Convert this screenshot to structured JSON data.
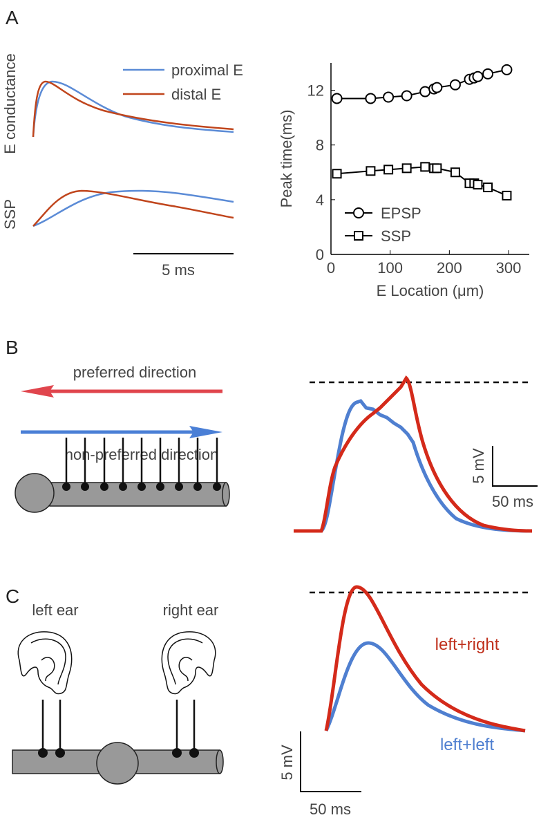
{
  "chart_data": {
    "type": "line",
    "xlabel": "E Location (μm)",
    "ylabel": "Peak time(ms)",
    "x": [
      10,
      67,
      97,
      128,
      159,
      174,
      179,
      210,
      234,
      242,
      248,
      265,
      297
    ],
    "series": [
      {
        "name": "EPSP",
        "color": "#000000",
        "marker": "circle",
        "values": [
          11.4,
          11.4,
          11.5,
          11.6,
          11.9,
          12.1,
          12.2,
          12.4,
          12.8,
          12.9,
          13.0,
          13.2,
          13.5
        ]
      },
      {
        "name": "SSP",
        "color": "#000000",
        "marker": "square",
        "values": [
          5.9,
          6.1,
          6.2,
          6.3,
          6.4,
          6.3,
          6.3,
          6.0,
          5.2,
          5.2,
          5.1,
          4.9,
          4.3
        ]
      }
    ],
    "xlim": [
      0,
      335
    ],
    "ylim": [
      0,
      14
    ],
    "xticks": [
      0,
      100,
      200,
      300
    ],
    "yticks": [
      0,
      4,
      8,
      12
    ],
    "legend": "lower left",
    "grid": false
  },
  "panel_labels": [
    "A",
    "B",
    "C"
  ],
  "panel_a": {
    "ylabel_top": "E conductance",
    "ylabel_bottom": "SSP",
    "legend": [
      "proximal E",
      "distal E"
    ],
    "scale_bar": "5 ms"
  },
  "panel_b": {
    "arrow_top": "preferred direction",
    "arrow_bottom": "non-preferred direction",
    "scale_bar_v": "5 mV",
    "scale_bar_h": "50 ms"
  },
  "panel_c": {
    "left": "left ear",
    "right": "right ear",
    "trace_top": "left+right",
    "trace_bottom": "left+left",
    "scale_bar_v": "5 mV",
    "scale_bar_h": "50 ms"
  }
}
